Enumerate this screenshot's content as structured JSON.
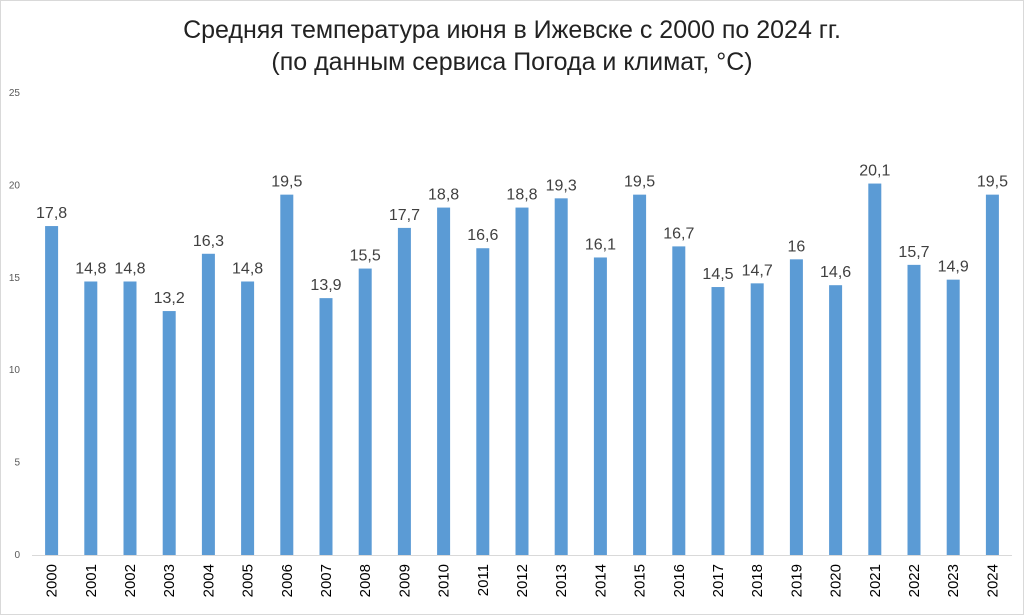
{
  "chart_data": {
    "type": "bar",
    "title_line1": "Средняя температура июня в Ижевске с 2000 по 2024 гг.",
    "title_line2": "(по данным сервиса Погода и климат, °C)",
    "categories": [
      "2000",
      "2001",
      "2002",
      "2003",
      "2004",
      "2005",
      "2006",
      "2007",
      "2008",
      "2009",
      "2010",
      "2011",
      "2012",
      "2013",
      "2014",
      "2015",
      "2016",
      "2017",
      "2018",
      "2019",
      "2020",
      "2021",
      "2022",
      "2023",
      "2024"
    ],
    "values": [
      17.8,
      14.8,
      14.8,
      13.2,
      16.3,
      14.8,
      19.5,
      13.9,
      15.5,
      17.7,
      18.8,
      16.6,
      18.8,
      19.3,
      16.1,
      19.5,
      16.7,
      14.5,
      14.7,
      16,
      14.6,
      20.1,
      15.7,
      14.9,
      19.5
    ],
    "value_labels": [
      "17,8",
      "14,8",
      "14,8",
      "13,2",
      "16,3",
      "14,8",
      "19,5",
      "13,9",
      "15,5",
      "17,7",
      "18,8",
      "16,6",
      "18,8",
      "19,3",
      "16,1",
      "19,5",
      "16,7",
      "14,5",
      "14,7",
      "16",
      "14,6",
      "20,1",
      "15,7",
      "14,9",
      "19,5"
    ],
    "yticks": [
      "0",
      "5",
      "10",
      "15",
      "20",
      "25"
    ],
    "ylim": [
      0,
      25
    ],
    "bar_color": "#5b9bd5",
    "grid": false,
    "xlabel": "",
    "ylabel": ""
  }
}
